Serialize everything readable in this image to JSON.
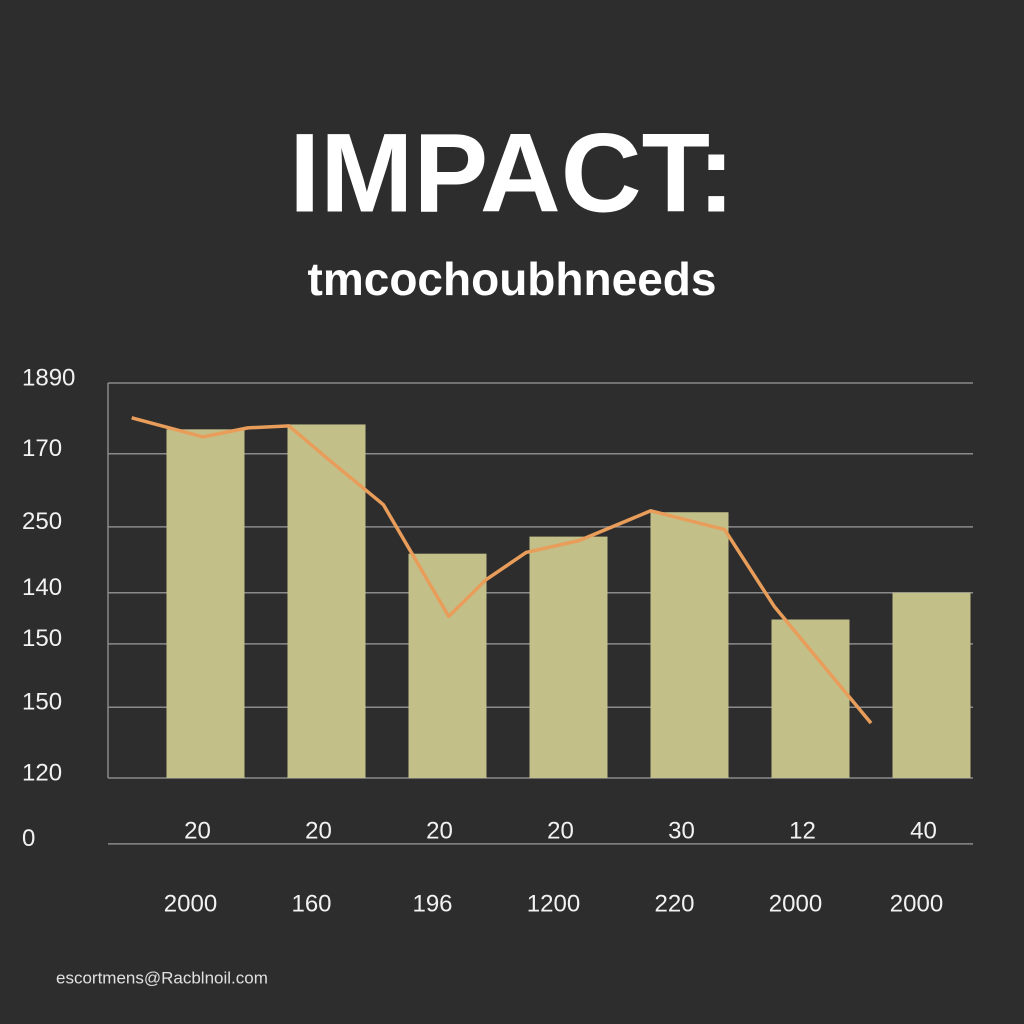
{
  "chart_data": {
    "type": "bar",
    "title": "IMPACT:",
    "subtitle": "tmcochoubhneeds",
    "footer": "escortmens@Racblnoil.com",
    "categories": [
      "2000",
      "160",
      "196",
      "1200",
      "220",
      "2000",
      "2000"
    ],
    "values": [
      1700,
      1720,
      1190,
      1260,
      1360,
      920,
      1030
    ],
    "color": "#c3bf89",
    "annotations": [
      "20",
      "20",
      "20",
      "20",
      "30",
      "12",
      "40"
    ],
    "line": {
      "color": "#e89d5a",
      "x": [
        -0.61,
        -0.02,
        0.35,
        0.69,
        1.02,
        1.47,
        2.01,
        2.32,
        2.65,
        3.09,
        3.68,
        4.29,
        4.7,
        5.5
      ],
      "values": [
        1747,
        1669,
        1706,
        1714,
        1575,
        1391,
        933,
        1084,
        1195,
        1244,
        1366,
        1289,
        974,
        495
      ]
    },
    "ylim": [
      270,
      1890
    ],
    "yticks": [
      1890,
      {
        "value": 1600,
        "label": "170"
      },
      {
        "value": 1300,
        "label": "250"
      },
      {
        "value": 1030,
        "label": "140"
      },
      {
        "value": 820,
        "label": "150"
      },
      {
        "value": 560,
        "label": "150"
      },
      {
        "value": 270,
        "label": "120"
      },
      0
    ],
    "grid": true
  }
}
